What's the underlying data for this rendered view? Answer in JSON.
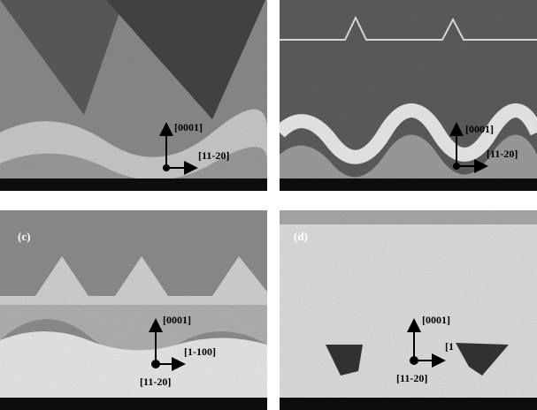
{
  "panels": [
    {
      "directions": {
        "up": "[0001]",
        "right": "[11-20]"
      }
    },
    {
      "directions": {
        "up": "[0001]",
        "right": "[11-20]"
      }
    },
    {
      "label": "(c)",
      "directions": {
        "up": "[0001]",
        "right": "[1-100]",
        "origin": "[11-20]"
      }
    },
    {
      "label": "(d)",
      "directions": {
        "up": "[0001]",
        "right": "[1",
        "origin": "[11-20]"
      }
    }
  ]
}
